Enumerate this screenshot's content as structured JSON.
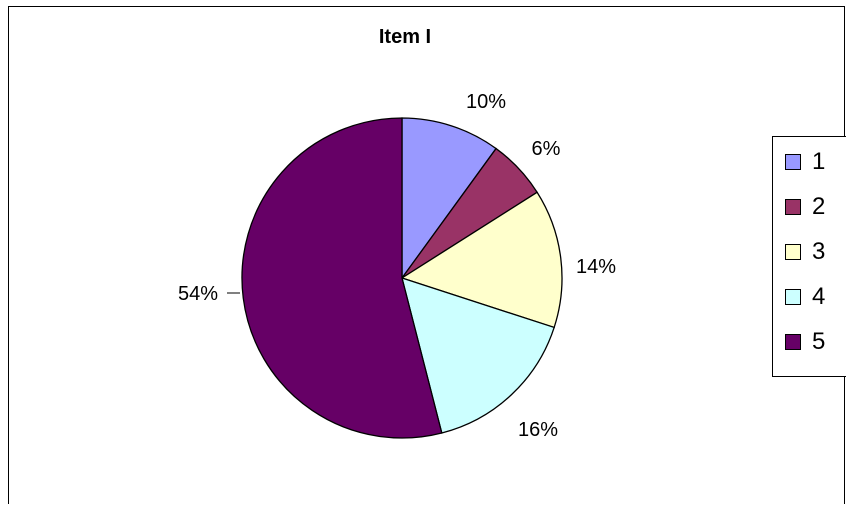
{
  "chart_data": {
    "type": "pie",
    "title": "Item I",
    "categories": [
      "1",
      "2",
      "3",
      "4",
      "5"
    ],
    "values": [
      10,
      6,
      14,
      16,
      54
    ],
    "labels": [
      "10%",
      "6%",
      "14%",
      "16%",
      "54%"
    ],
    "colors": [
      "#9999ff",
      "#993366",
      "#ffffcc",
      "#ccffff",
      "#660066"
    ],
    "legend": {
      "position": "right",
      "entries": [
        "1",
        "2",
        "3",
        "4",
        "5"
      ]
    }
  }
}
